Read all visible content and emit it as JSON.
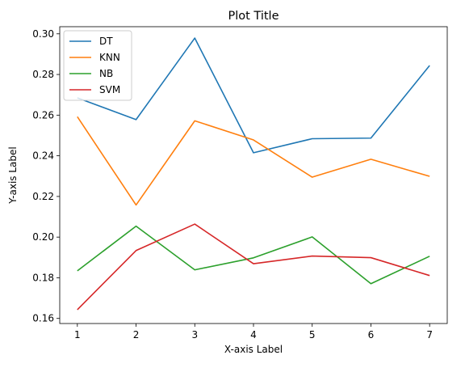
{
  "chart_data": {
    "type": "line",
    "title": "Plot Title",
    "xlabel": "X-axis Label",
    "ylabel": "Y-axis Label",
    "x": [
      1,
      2,
      3,
      4,
      5,
      6,
      7
    ],
    "xlim": [
      0.7,
      7.3
    ],
    "ylim": [
      0.1575,
      0.3035
    ],
    "xticks": [
      1,
      2,
      3,
      4,
      5,
      6,
      7
    ],
    "yticks": [
      0.16,
      0.18,
      0.2,
      0.22,
      0.24,
      0.26,
      0.28,
      0.3
    ],
    "grid": false,
    "legend_position": "top-left",
    "series": [
      {
        "name": "DT",
        "color": "#1f77b4",
        "values": [
          0.2685,
          0.2578,
          0.2979,
          0.2415,
          0.2484,
          0.2487,
          0.2844
        ]
      },
      {
        "name": "KNN",
        "color": "#ff7f0e",
        "values": [
          0.2592,
          0.2158,
          0.2572,
          0.2478,
          0.2295,
          0.2383,
          0.2299
        ]
      },
      {
        "name": "NB",
        "color": "#2ca02c",
        "values": [
          0.1834,
          0.2054,
          0.1839,
          0.1898,
          0.2001,
          0.1771,
          0.1906
        ]
      },
      {
        "name": "SVM",
        "color": "#d62728",
        "values": [
          0.1643,
          0.1934,
          0.2064,
          0.1869,
          0.1907,
          0.1899,
          0.1811
        ]
      }
    ]
  }
}
